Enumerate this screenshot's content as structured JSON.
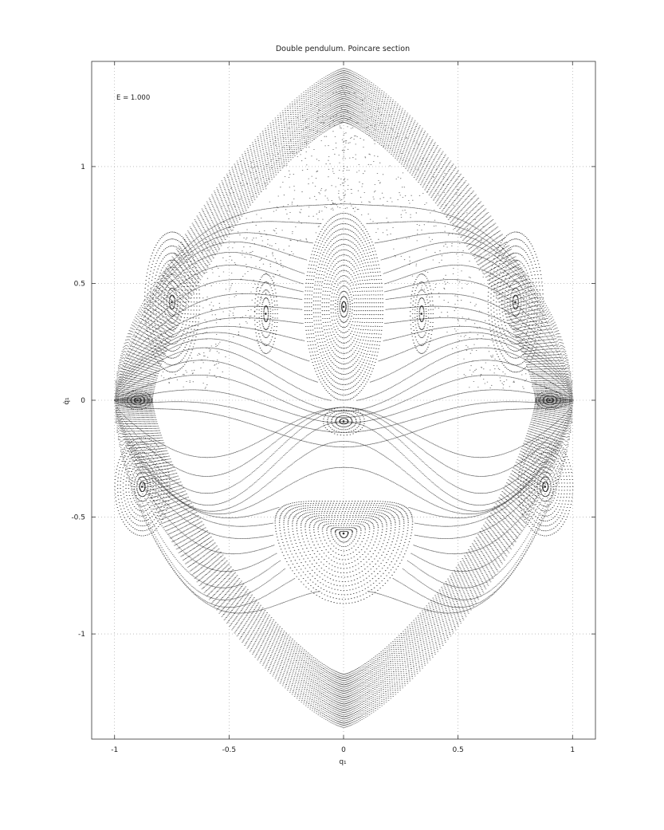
{
  "chart_data": {
    "type": "scatter",
    "title": "Double pendulum. Poincare section",
    "xlabel": "q₁",
    "ylabel": "q̇₁",
    "annotation": "E = 1.000",
    "xlim": [
      -1.1,
      1.1
    ],
    "ylim": [
      -1.45,
      1.45
    ],
    "xticks": [
      -1,
      -0.5,
      0,
      0.5,
      1
    ],
    "xtick_labels": [
      "-1",
      "-0.5",
      "0",
      "0.5",
      "1"
    ],
    "yticks": [
      1,
      0.5,
      0,
      -0.5,
      -1
    ],
    "ytick_labels": [
      "1",
      "0.5",
      "0",
      "-0.5",
      "-1"
    ],
    "grid": true,
    "marker_color": "#2a2a2a",
    "boundary": {
      "top": [
        0,
        1.42
      ],
      "bottom": [
        0,
        -1.4
      ],
      "left": [
        -1.0,
        0.0
      ],
      "right": [
        1.0,
        0.0
      ]
    },
    "islands": [
      {
        "name": "central-upper",
        "center": [
          0.0,
          0.4
        ],
        "rx": 0.17,
        "ry": 0.4,
        "rings": 18
      },
      {
        "name": "central-lower",
        "center": [
          0.0,
          -0.57
        ],
        "rx": 0.3,
        "ry": 0.25,
        "rings": 16
      },
      {
        "name": "left-upper",
        "center": [
          -0.75,
          0.42
        ],
        "rx": 0.12,
        "ry": 0.3,
        "rings": 10
      },
      {
        "name": "right-upper",
        "center": [
          0.75,
          0.42
        ],
        "rx": 0.12,
        "ry": 0.3,
        "rings": 10
      },
      {
        "name": "left-inner",
        "center": [
          -0.34,
          0.37
        ],
        "rx": 0.05,
        "ry": 0.17,
        "rings": 5
      },
      {
        "name": "right-inner",
        "center": [
          0.34,
          0.37
        ],
        "rx": 0.05,
        "ry": 0.17,
        "rings": 5
      },
      {
        "name": "left-lower",
        "center": [
          -0.88,
          -0.37
        ],
        "rx": 0.12,
        "ry": 0.21,
        "rings": 10
      },
      {
        "name": "right-lower",
        "center": [
          0.88,
          -0.37
        ],
        "rx": 0.12,
        "ry": 0.21,
        "rings": 10
      },
      {
        "name": "mid-small",
        "center": [
          0.0,
          -0.09
        ],
        "rx": 0.09,
        "ry": 0.06,
        "rings": 5
      },
      {
        "name": "left-edge-small",
        "center": [
          -0.9,
          0.0
        ],
        "rx": 0.06,
        "ry": 0.04,
        "rings": 4
      },
      {
        "name": "right-edge-small",
        "center": [
          0.9,
          0.0
        ],
        "rx": 0.06,
        "ry": 0.04,
        "rings": 4
      }
    ]
  }
}
